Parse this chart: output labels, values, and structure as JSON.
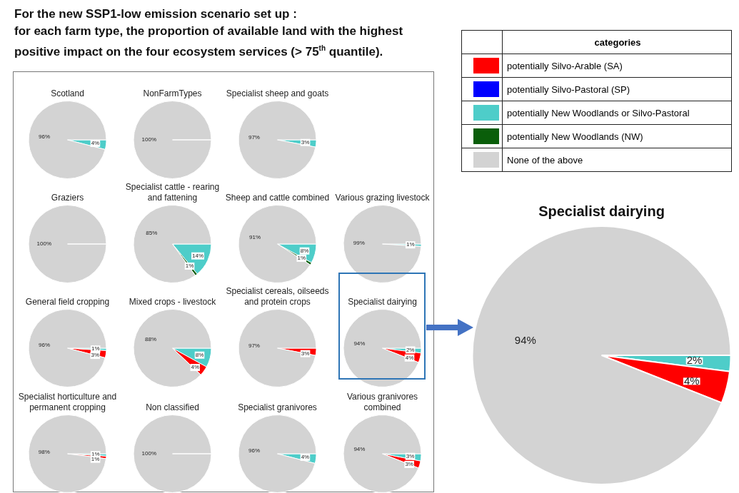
{
  "chart_data": [
    {
      "type": "other",
      "title": "For the new SSP1-low emission scenario set up :",
      "subtitle": "for each farm type, the proportion of available land with the highest positive impact on the four ecosystem services (> 75$^{th}$ quantile)."
    },
    {
      "type": "pie",
      "title": "Scotland",
      "categories": [
        null,
        null,
        null,
        null,
        null
      ],
      "values": [
        4,
        0,
        0,
        0,
        96
      ],
      "value_labels": [
        "4%",
        null,
        null,
        null,
        "96%"
      ],
      "colors": [
        "#4ecdc9",
        "#ff0000",
        "#0a5e0a",
        "#0000ff",
        "#d3d3d3"
      ]
    },
    {
      "type": "pie",
      "title": "NonFarmTypes",
      "categories": [
        null,
        null,
        null,
        null,
        null
      ],
      "values": [
        0,
        0,
        0,
        0,
        100
      ],
      "value_labels": [
        null,
        null,
        null,
        null,
        "100%"
      ],
      "colors": [
        "#4ecdc9",
        "#ff0000",
        "#0a5e0a",
        "#0000ff",
        "#d3d3d3"
      ]
    },
    {
      "type": "pie",
      "title": "Specialist sheep and goats",
      "categories": [
        null,
        null,
        null,
        null,
        null
      ],
      "values": [
        3,
        0,
        0,
        0,
        97
      ],
      "value_labels": [
        "3%",
        null,
        null,
        null,
        "97%"
      ],
      "colors": [
        "#4ecdc9",
        "#ff0000",
        "#0a5e0a",
        "#0000ff",
        "#d3d3d3"
      ]
    },
    {
      "type": "pie",
      "title": "Graziers",
      "categories": [
        null,
        null,
        null,
        null,
        null
      ],
      "values": [
        0,
        0,
        0,
        0,
        100
      ],
      "value_labels": [
        null,
        null,
        null,
        null,
        "100%"
      ],
      "colors": [
        "#4ecdc9",
        "#ff0000",
        "#0a5e0a",
        "#0000ff",
        "#d3d3d3"
      ]
    },
    {
      "type": "pie",
      "title": "Specialist cattle - rearing and fattening",
      "categories": [
        null,
        null,
        null,
        null,
        null
      ],
      "values": [
        14,
        0,
        1,
        0,
        85
      ],
      "value_labels": [
        "14%",
        null,
        "1%",
        null,
        "85%"
      ],
      "colors": [
        "#4ecdc9",
        "#ff0000",
        "#0a5e0a",
        "#0000ff",
        "#d3d3d3"
      ]
    },
    {
      "type": "pie",
      "title": "Sheep and cattle combined",
      "categories": [
        null,
        null,
        null,
        null,
        null
      ],
      "values": [
        8,
        0,
        1,
        0,
        91
      ],
      "value_labels": [
        "8%",
        null,
        "1%",
        null,
        "91%"
      ],
      "colors": [
        "#4ecdc9",
        "#ff0000",
        "#0a5e0a",
        "#0000ff",
        "#d3d3d3"
      ]
    },
    {
      "type": "pie",
      "title": "Various grazing livestock",
      "categories": [
        null,
        null,
        null,
        null,
        null
      ],
      "values": [
        1,
        0,
        0,
        0,
        99
      ],
      "value_labels": [
        "1%",
        null,
        null,
        null,
        "99%"
      ],
      "colors": [
        "#4ecdc9",
        "#ff0000",
        "#0a5e0a",
        "#0000ff",
        "#d3d3d3"
      ]
    },
    {
      "type": "pie",
      "title": "General field cropping",
      "categories": [
        null,
        null,
        null,
        null,
        null
      ],
      "values": [
        1,
        3,
        0,
        0,
        96
      ],
      "value_labels": [
        "1%",
        "3%",
        null,
        null,
        "96%"
      ],
      "colors": [
        "#4ecdc9",
        "#ff0000",
        "#0a5e0a",
        "#0000ff",
        "#d3d3d3"
      ]
    },
    {
      "type": "pie",
      "title": "Mixed crops - livestock",
      "categories": [
        null,
        null,
        null,
        null,
        null
      ],
      "values": [
        8,
        4,
        0,
        0,
        88
      ],
      "value_labels": [
        "8%",
        "4%",
        null,
        null,
        "88%"
      ],
      "colors": [
        "#4ecdc9",
        "#ff0000",
        "#0a5e0a",
        "#0000ff",
        "#d3d3d3"
      ]
    },
    {
      "type": "pie",
      "title": "Specialist cereals, oilseeds and protein crops",
      "categories": [
        null,
        null,
        null,
        null,
        null
      ],
      "values": [
        0,
        3,
        0,
        0,
        97
      ],
      "value_labels": [
        null,
        "3%",
        null,
        null,
        "97%"
      ],
      "colors": [
        "#4ecdc9",
        "#ff0000",
        "#0a5e0a",
        "#0000ff",
        "#d3d3d3"
      ]
    },
    {
      "type": "pie",
      "title": "Specialist dairying",
      "categories": [
        null,
        null,
        null,
        null,
        null
      ],
      "values": [
        2,
        4,
        0,
        0,
        94
      ],
      "value_labels": [
        "2%",
        "4%",
        null,
        null,
        "94%"
      ],
      "colors": [
        "#4ecdc9",
        "#ff0000",
        "#0a5e0a",
        "#0000ff",
        "#d3d3d3"
      ]
    },
    {
      "type": "pie",
      "title": "Specialist horticulture and permanent cropping",
      "categories": [
        null,
        null,
        null,
        null,
        null
      ],
      "values": [
        1,
        1,
        0,
        0,
        98
      ],
      "value_labels": [
        "1%",
        "1%",
        null,
        null,
        "98%"
      ],
      "colors": [
        "#4ecdc9",
        "#ff0000",
        "#0a5e0a",
        "#0000ff",
        "#d3d3d3"
      ]
    },
    {
      "type": "pie",
      "title": "Non classified",
      "categories": [
        null,
        null,
        null,
        null,
        null
      ],
      "values": [
        0,
        0,
        0,
        0,
        100
      ],
      "value_labels": [
        null,
        null,
        null,
        null,
        "100%"
      ],
      "colors": [
        "#4ecdc9",
        "#ff0000",
        "#0a5e0a",
        "#0000ff",
        "#d3d3d3"
      ]
    },
    {
      "type": "pie",
      "title": "Specialist granivores",
      "categories": [
        null,
        null,
        null,
        null,
        null
      ],
      "values": [
        4,
        0,
        0,
        0,
        96
      ],
      "value_labels": [
        "4%",
        null,
        null,
        null,
        "96%"
      ],
      "colors": [
        "#4ecdc9",
        "#ff0000",
        "#0a5e0a",
        "#0000ff",
        "#d3d3d3"
      ]
    },
    {
      "type": "pie",
      "title": "Various granivores combined",
      "categories": [
        null,
        null,
        null,
        null,
        null
      ],
      "values": [
        3,
        3,
        0,
        0,
        94
      ],
      "value_labels": [
        "3%",
        "3%",
        null,
        null,
        "94%"
      ],
      "colors": [
        "#4ecdc9",
        "#ff0000",
        "#0a5e0a",
        "#0000ff",
        "#d3d3d3"
      ]
    },
    {
      "type": "pie",
      "title": "Specialist dairying",
      "legend": "top",
      "legend_title": "categories",
      "categories": [
        "potentially New Woodlands or Silvo-Pastoral",
        "potentially Silvo-Arable (SA)",
        "potentially New Woodlands (NW)",
        "potentially Silvo-Pastoral (SP)",
        "None of the above"
      ],
      "values": [
        2,
        4,
        0,
        0,
        94
      ],
      "value_labels": [
        "2%",
        "4%",
        null,
        null,
        "94%"
      ],
      "colors": [
        "#4ecdc9",
        "#ff0000",
        "#0a5e0a",
        "#0000ff",
        "#d3d3d3"
      ]
    }
  ]
}
